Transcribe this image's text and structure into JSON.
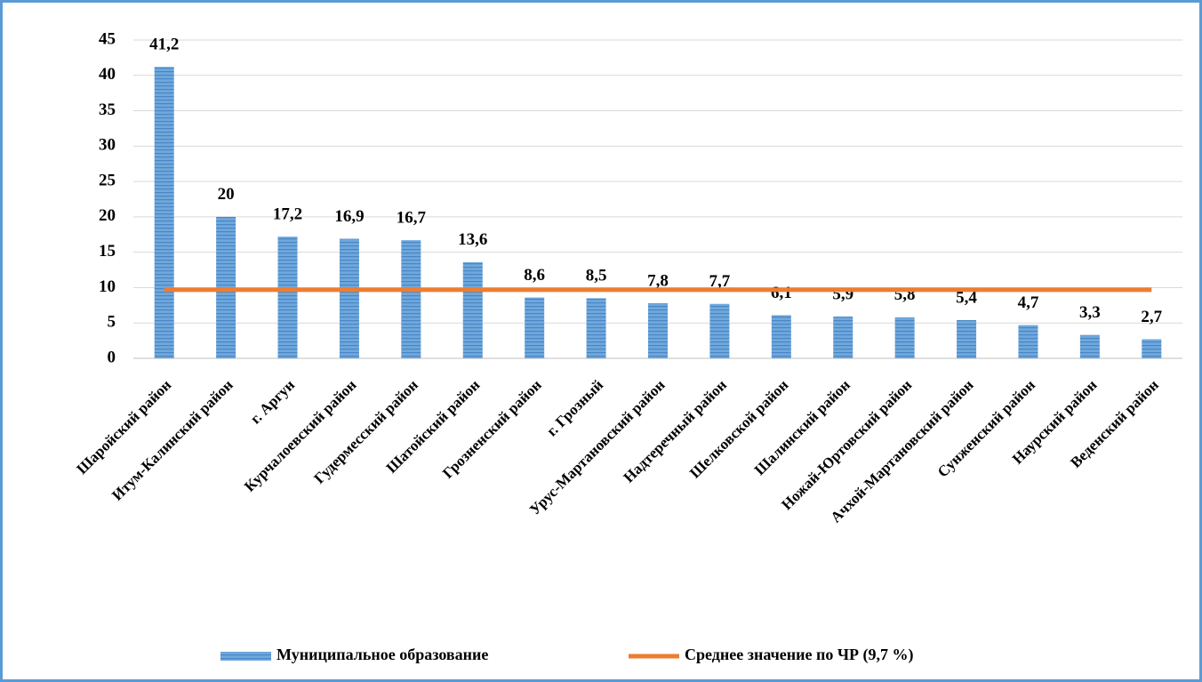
{
  "chart_data": {
    "type": "bar",
    "categories": [
      "Шаройский район",
      "Итум-Калинский район",
      "г. Аргун",
      "Курчалоевский район",
      "Гудермесский район",
      "Шатойский район",
      "Грозненский район",
      "г. Грозный",
      "Урус-Мартановский район",
      "Надтеречный район",
      "Шелковской район",
      "Шалинский район",
      "Ножай-Юртовский район",
      "Ачхой-Мартановский район",
      "Сунженский район",
      "Наурский район",
      "Веденский район"
    ],
    "series": [
      {
        "name": "Муниципальное образование",
        "type": "bar",
        "color": "#5b9bd5",
        "values": [
          41.2,
          20,
          17.2,
          16.9,
          16.7,
          13.6,
          8.6,
          8.5,
          7.8,
          7.7,
          6.1,
          5.9,
          5.8,
          5.4,
          4.7,
          3.3,
          2.7
        ],
        "value_labels": [
          "41,2",
          "20",
          "17,2",
          "16,9",
          "16,7",
          "13,6",
          "8,6",
          "8,5",
          "7,8",
          "7,7",
          "6,1",
          "5,9",
          "5,8",
          "5,4",
          "4,7",
          "3,3",
          "2,7"
        ]
      },
      {
        "name": "Среднее значение по ЧР (9,7 %)",
        "type": "line",
        "color": "#ed7d31",
        "values": [
          9.7,
          9.7,
          9.7,
          9.7,
          9.7,
          9.7,
          9.7,
          9.7,
          9.7,
          9.7,
          9.7,
          9.7,
          9.7,
          9.7,
          9.7,
          9.7,
          9.7
        ]
      }
    ],
    "ylim": [
      0,
      45
    ],
    "yticks": [
      0,
      5,
      10,
      15,
      20,
      25,
      30,
      35,
      40,
      45
    ],
    "grid": true,
    "legend": "bottom"
  }
}
